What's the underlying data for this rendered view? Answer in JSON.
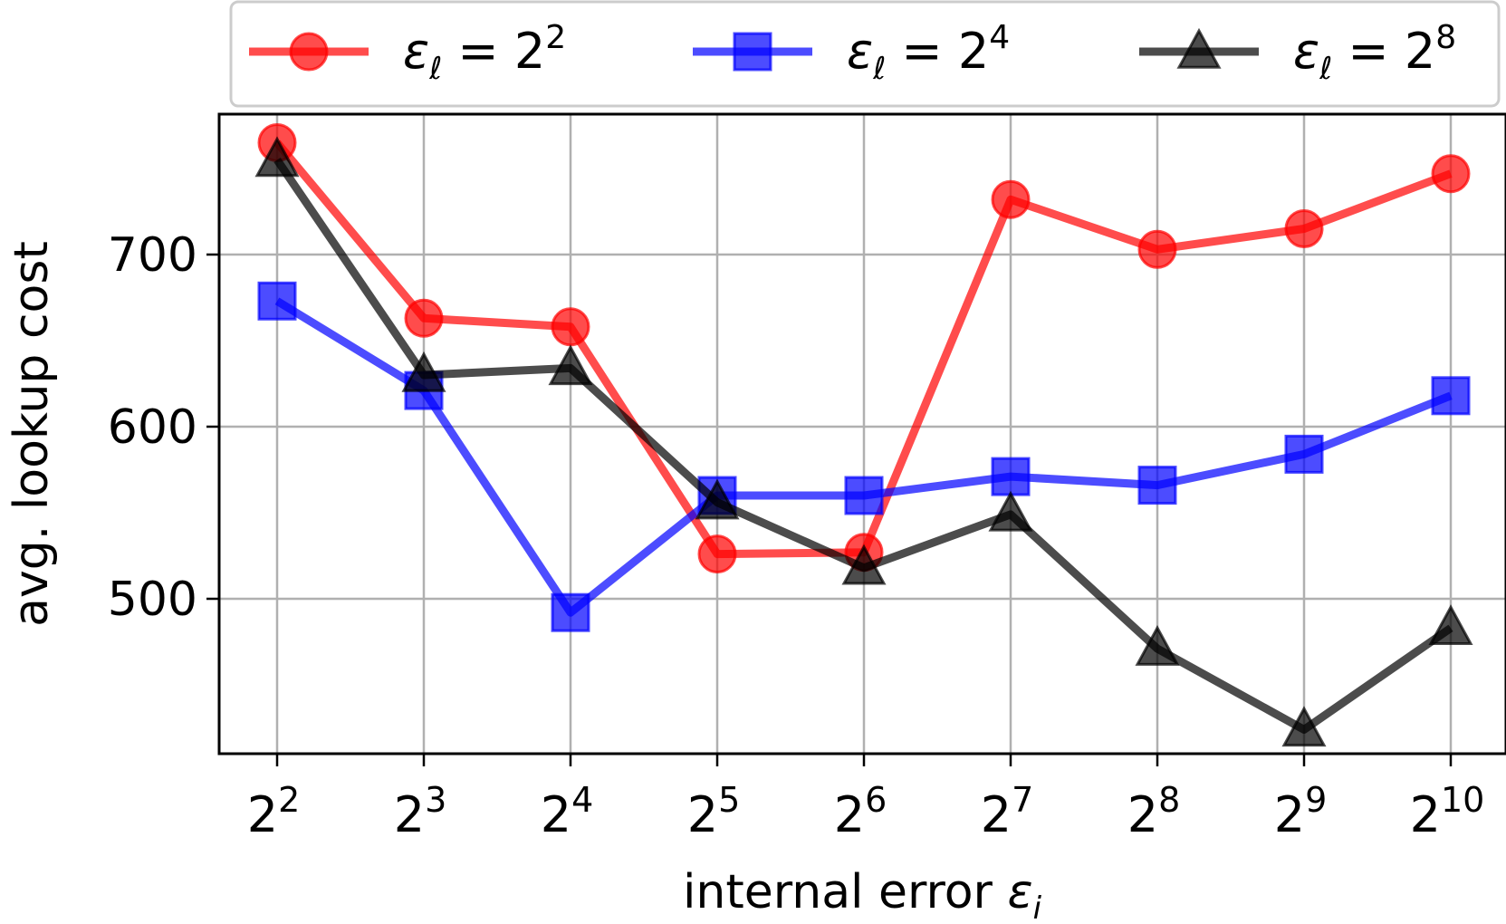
{
  "chart_data": {
    "type": "line",
    "xlabel": "internal error",
    "xlabel_symbol": "ε",
    "xlabel_subscript": "i",
    "ylabel": "avg. lookup cost",
    "x_ticks": [
      {
        "base": "2",
        "exp": "2"
      },
      {
        "base": "2",
        "exp": "3"
      },
      {
        "base": "2",
        "exp": "4"
      },
      {
        "base": "2",
        "exp": "5"
      },
      {
        "base": "2",
        "exp": "6"
      },
      {
        "base": "2",
        "exp": "7"
      },
      {
        "base": "2",
        "exp": "8"
      },
      {
        "base": "2",
        "exp": "9"
      },
      {
        "base": "2",
        "exp": "10"
      }
    ],
    "x_values": [
      4,
      8,
      16,
      32,
      64,
      128,
      256,
      512,
      1024
    ],
    "x_scale": "log2",
    "y_ticks": [
      "500",
      "600",
      "700"
    ],
    "ylim": [
      410,
      780
    ],
    "grid": true,
    "legend_position": "top, outside plot",
    "series": [
      {
        "name_symbol": "ε",
        "name_subscript": "ℓ",
        "name_rest": " = 2",
        "name_exp": "2",
        "color": "#ff0000",
        "marker": "circle",
        "values": [
          765,
          663,
          658,
          526,
          527,
          732,
          703,
          715,
          747
        ]
      },
      {
        "name_symbol": "ε",
        "name_subscript": "ℓ",
        "name_rest": " = 2",
        "name_exp": "4",
        "color": "#0000ff",
        "marker": "square",
        "values": [
          673,
          621,
          492,
          560,
          560,
          571,
          566,
          584,
          618
        ]
      },
      {
        "name_symbol": "ε",
        "name_subscript": "ℓ",
        "name_rest": " = 2",
        "name_exp": "8",
        "color": "#000000",
        "marker": "triangle",
        "values": [
          755,
          630,
          634,
          556,
          518,
          549,
          471,
          424,
          483
        ]
      }
    ]
  }
}
